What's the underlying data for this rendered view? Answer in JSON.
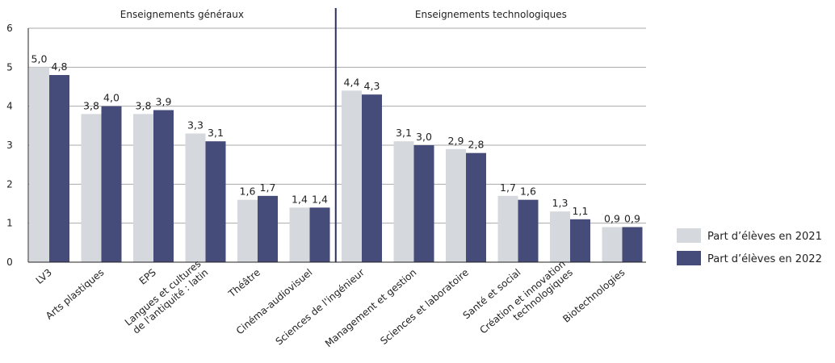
{
  "chart_data": {
    "type": "bar",
    "group_labels": [
      "Enseignements généraux",
      "Enseignements technologiques"
    ],
    "categories": [
      "LV3",
      "Arts plastiques",
      "EPS",
      "Langues et cultures\nde l'antiquité : latin",
      "Théâtre",
      "Cinéma-audiovisuel",
      "Sciences de l'ingénieur",
      "Management et gestion",
      "Sciences et laboratoire",
      "Santé et social",
      "Création et innovation\ntechnologiques",
      "Biotechnologies"
    ],
    "series": [
      {
        "name": "Part d’élèves en 2021",
        "color": "#d5d8dd",
        "values": [
          5.0,
          3.8,
          3.8,
          3.3,
          1.6,
          1.4,
          4.4,
          3.1,
          2.9,
          1.7,
          1.3,
          0.9
        ],
        "value_labels": [
          "5,0",
          "3,8",
          "3,8",
          "3,3",
          "1,6",
          "1,4",
          "4,4",
          "3,1",
          "2,9",
          "1,7",
          "1,3",
          "0,9"
        ]
      },
      {
        "name": "Part d’élèves en 2022",
        "color": "#464c7a",
        "values": [
          4.8,
          4.0,
          3.9,
          3.1,
          1.7,
          1.4,
          4.3,
          3.0,
          2.8,
          1.6,
          1.1,
          0.9
        ],
        "value_labels": [
          "4,8",
          "4,0",
          "3,9",
          "3,1",
          "1,7",
          "1,4",
          "4,3",
          "3,0",
          "2,8",
          "1,6",
          "1,1",
          "0,9"
        ]
      }
    ],
    "ylim": [
      0,
      6
    ],
    "yticks": [
      0,
      1,
      2,
      3,
      4,
      5,
      6
    ],
    "grid": true,
    "legend": "right"
  }
}
